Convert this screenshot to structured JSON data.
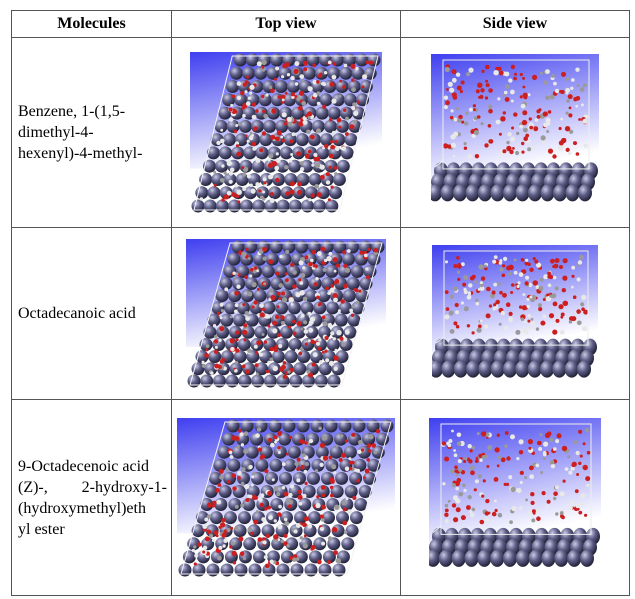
{
  "headers": [
    "Molecules",
    "Top view",
    "Side view"
  ],
  "rows": [
    {
      "lines": [
        "Benzene, 1-(1,5-",
        "dimethyl-4-",
        "hexenyl)-4-methyl-"
      ]
    },
    {
      "lines": [
        "Octadecanoic acid"
      ]
    },
    {
      "lines": [
        "9-Octadecenoic acid",
        "(Z)-,    2-hydroxy-1-",
        "(hydroxymethyl)eth",
        "yl ester"
      ]
    }
  ],
  "colors": {
    "sky_top": "#3f3ff0",
    "sky_bottom": "#ffffff",
    "sphere": "#5d5d86",
    "oxygen": "#cc1f1f",
    "hydrogen": "#e8e8e8"
  }
}
